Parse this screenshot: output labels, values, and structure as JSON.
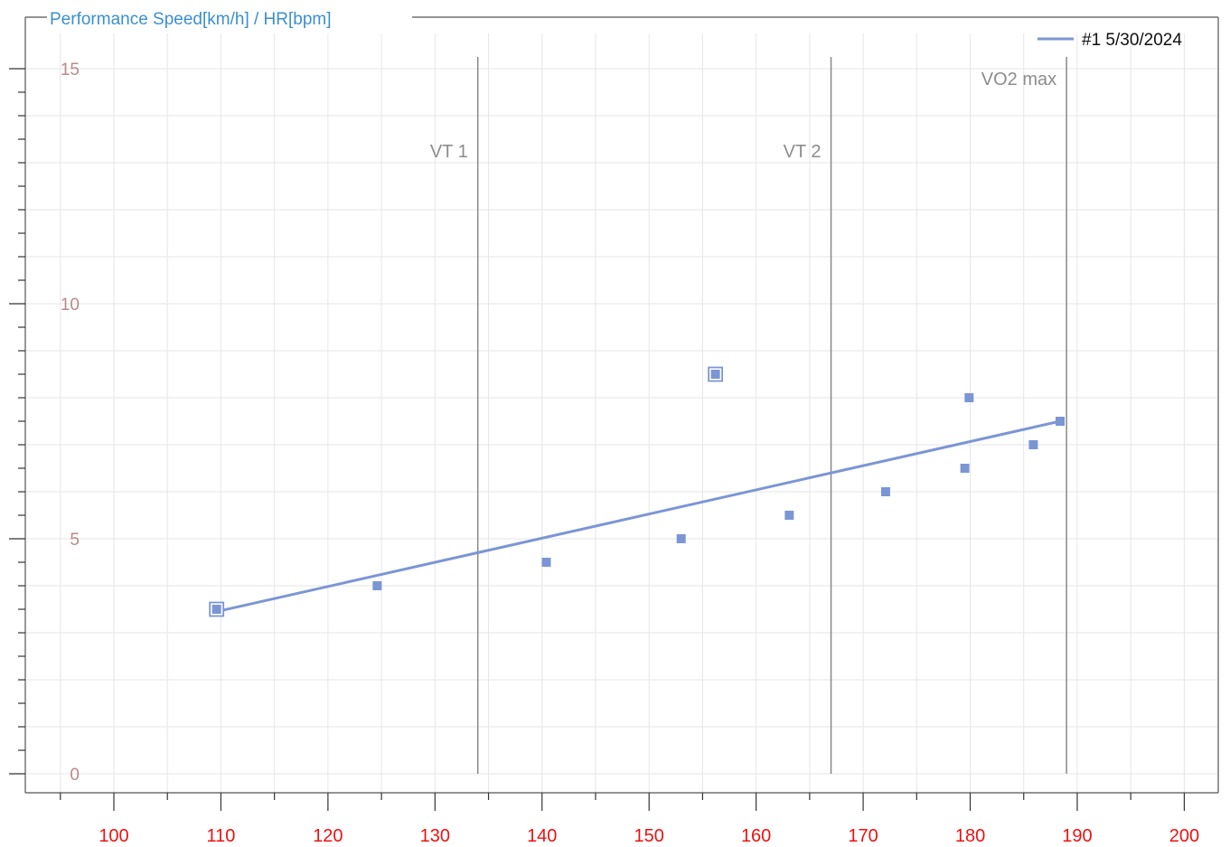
{
  "colors": {
    "title": "#3a8fcf",
    "frame": "#555555",
    "grid": "#e6e6e6",
    "y_tick_labels": "#b88a8a",
    "x_tick_labels": "#ee1111",
    "series": "#7b96d4",
    "marker_lines": "#888888",
    "marker_labels": "#8c8c8c"
  },
  "chart_data": {
    "type": "scatter",
    "title": "Performance Speed[km/h] / HR[bpm]",
    "xlabel": "",
    "ylabel": "",
    "xlim": [
      91.5,
      203.5
    ],
    "ylim": [
      -0.4,
      15.4
    ],
    "x_ticks": [
      100,
      110,
      120,
      130,
      140,
      150,
      160,
      170,
      180,
      190,
      200
    ],
    "x_tick_labels": [
      "100",
      "110",
      "120",
      "130",
      "140",
      "150",
      "160",
      "170",
      "180",
      "190",
      "200"
    ],
    "y_ticks": [
      0,
      5,
      10,
      15
    ],
    "y_tick_labels": [
      "0",
      "5",
      "10",
      "15"
    ],
    "grid": true,
    "legend_position": "top-right",
    "series": [
      {
        "name": "#1 5/30/2024",
        "points": [
          {
            "x": 109.6,
            "y": 3.5,
            "highlighted": true
          },
          {
            "x": 124.6,
            "y": 4.0
          },
          {
            "x": 140.4,
            "y": 4.5
          },
          {
            "x": 153.0,
            "y": 5.0
          },
          {
            "x": 156.2,
            "y": 8.5,
            "highlighted": true
          },
          {
            "x": 163.1,
            "y": 5.5
          },
          {
            "x": 172.1,
            "y": 6.0
          },
          {
            "x": 179.5,
            "y": 6.5
          },
          {
            "x": 179.9,
            "y": 8.0
          },
          {
            "x": 185.9,
            "y": 7.0
          },
          {
            "x": 188.4,
            "y": 7.5
          }
        ],
        "trend_line": [
          {
            "x": 109.6,
            "y": 3.45
          },
          {
            "x": 188.4,
            "y": 7.5
          }
        ]
      }
    ],
    "vertical_markers": [
      {
        "label": "VT 1",
        "x": 134.0
      },
      {
        "label": "VT 2",
        "x": 167.0
      },
      {
        "label": "VO2 max",
        "x": 189.0
      }
    ]
  }
}
